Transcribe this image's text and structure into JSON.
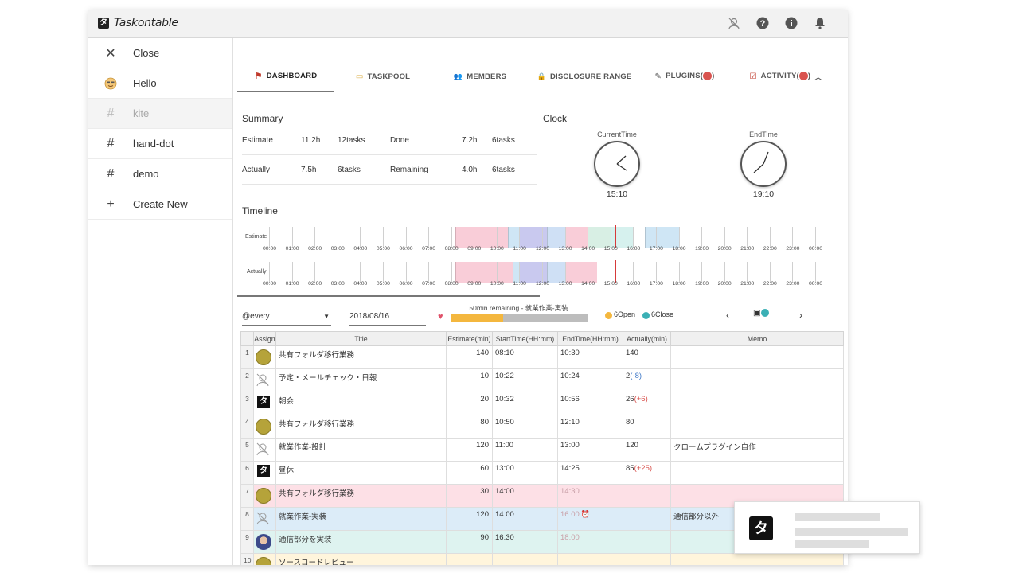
{
  "app": {
    "title": "Taskontable",
    "logo_glyph": "タ"
  },
  "header_icons": [
    "user-off-icon",
    "help-icon",
    "info-icon",
    "bell-icon"
  ],
  "sidebar": {
    "items": [
      {
        "icon": "close-icon",
        "glyph": "✕",
        "label": "Close"
      },
      {
        "icon": "emoji-icon",
        "glyph": "☺",
        "label": "Hello"
      },
      {
        "icon": "hash-icon",
        "glyph": "#",
        "label": "kite"
      },
      {
        "icon": "hash-icon",
        "glyph": "#",
        "label": "hand-dot"
      },
      {
        "icon": "hash-icon",
        "glyph": "#",
        "label": "demo"
      },
      {
        "icon": "plus-icon",
        "glyph": "+",
        "label": "Create New"
      }
    ]
  },
  "tabs": [
    {
      "label": "DASHBOARD",
      "glyph": "⚑",
      "active": true
    },
    {
      "label": "TASKPOOL",
      "glyph": "▭"
    },
    {
      "label": "MEMBERS",
      "glyph": "👥"
    },
    {
      "label": "DISCLOSURE RANGE",
      "glyph": "🔒"
    },
    {
      "label": "PLUGINS(",
      "suffix": ")",
      "glyph": "✎"
    },
    {
      "label": "ACTIVITY(",
      "suffix": ")",
      "glyph": "☑"
    }
  ],
  "summary": {
    "title": "Summary",
    "rows": [
      {
        "label": "Estimate",
        "hours": "11.2h",
        "tasks": "12tasks",
        "label2": "Done",
        "hours2": "7.2h",
        "tasks2": "6tasks"
      },
      {
        "label": "Actually",
        "hours": "7.5h",
        "tasks": "6tasks",
        "label2": "Remaining",
        "hours2": "4.0h",
        "tasks2": "6tasks"
      }
    ]
  },
  "clock": {
    "title": "Clock",
    "current_label": "CurrentTime",
    "current_time": "15:10",
    "end_label": "EndTime",
    "end_time": "19:10"
  },
  "timeline": {
    "title": "Timeline",
    "estimate_label": "Estimate",
    "actually_label": "Actually",
    "hours": [
      "00:00",
      "01:00",
      "02:00",
      "03:00",
      "04:00",
      "05:00",
      "06:00",
      "07:00",
      "08:00",
      "09:00",
      "10:00",
      "11:00",
      "12:00",
      "13:00",
      "14:00",
      "15:00",
      "16:00",
      "17:00",
      "18:00",
      "19:00",
      "20:00",
      "21:00",
      "22:00",
      "23:00",
      "00:00"
    ],
    "estimate_blocks": [
      {
        "start": 8.17,
        "end": 10.5,
        "color": "#f9cdd8"
      },
      {
        "start": 10.5,
        "end": 11.0,
        "color": "#cfe6f5"
      },
      {
        "start": 11.0,
        "end": 12.2,
        "color": "#c9c9ef"
      },
      {
        "start": 12.2,
        "end": 13.0,
        "color": "#cfe0f5"
      },
      {
        "start": 13.0,
        "end": 14.0,
        "color": "#f9cdd8"
      },
      {
        "start": 14.0,
        "end": 15.0,
        "color": "#d8efe4"
      },
      {
        "start": 15.0,
        "end": 16.0,
        "color": "#d6f1ee"
      },
      {
        "start": 16.5,
        "end": 18.0,
        "color": "#cfe6f5"
      }
    ],
    "actual_blocks": [
      {
        "start": 8.17,
        "end": 10.7,
        "color": "#f9cdd8"
      },
      {
        "start": 10.7,
        "end": 11.0,
        "color": "#cfe6f5"
      },
      {
        "start": 11.0,
        "end": 12.2,
        "color": "#c9c9ef"
      },
      {
        "start": 12.2,
        "end": 13.0,
        "color": "#cfe0f5"
      },
      {
        "start": 13.0,
        "end": 14.4,
        "color": "#f9cdd8"
      }
    ],
    "now_hour": 15.17
  },
  "controls": {
    "filter": "@every",
    "date": "2018/08/16",
    "progress_text": "50min remaining - 就業作業-実装",
    "progress": 0.38,
    "open_label": "6Open",
    "close_label": "6Close"
  },
  "grid": {
    "headers": [
      "Assign",
      "Title",
      "Estimate(min)",
      "StartTime(HH:mm)",
      "EndTime(HH:mm)",
      "Actually(min)",
      "Memo"
    ],
    "rows": [
      {
        "n": "1",
        "avatar": "olive",
        "title": "共有フォルダ移行業務",
        "est": "140",
        "start": "08:10",
        "end": "10:30",
        "act": "140",
        "diff": "",
        "memo": "",
        "style": ""
      },
      {
        "n": "2",
        "avatar": "line",
        "title": "予定・メールチェック・日報",
        "est": "10",
        "start": "10:22",
        "end": "10:24",
        "act": "2",
        "diff": "(-8)",
        "diffColor": "#3f78c7",
        "memo": "",
        "style": ""
      },
      {
        "n": "3",
        "avatar": "logo",
        "title": "朝会",
        "est": "20",
        "start": "10:32",
        "end": "10:56",
        "act": "26",
        "diff": "(+6)",
        "diffColor": "#d9534f",
        "memo": "",
        "style": ""
      },
      {
        "n": "4",
        "avatar": "olive",
        "title": "共有フォルダ移行業務",
        "est": "80",
        "start": "10:50",
        "end": "12:10",
        "act": "80",
        "diff": "",
        "memo": "",
        "style": ""
      },
      {
        "n": "5",
        "avatar": "line",
        "title": "就業作業-設計",
        "est": "120",
        "start": "11:00",
        "end": "13:00",
        "act": "120",
        "diff": "",
        "memo": "クロームプラグイン自作",
        "style": ""
      },
      {
        "n": "6",
        "avatar": "logo",
        "title": "昼休",
        "est": "60",
        "start": "13:00",
        "end": "14:25",
        "act": "85",
        "diff": "(+25)",
        "diffColor": "#d9534f",
        "memo": "",
        "style": ""
      },
      {
        "n": "7",
        "avatar": "olive",
        "title": "共有フォルダ移行業務",
        "est": "30",
        "start": "14:00",
        "end": "14:30",
        "endMuted": true,
        "act": "",
        "diff": "",
        "memo": "",
        "style": "pink"
      },
      {
        "n": "8",
        "avatar": "line",
        "title": "就業作業-実装",
        "est": "120",
        "start": "14:00",
        "end": "16:00",
        "endMuted": true,
        "alarm": true,
        "act": "",
        "diff": "",
        "memo": "通信部分以外",
        "style": "blue"
      },
      {
        "n": "9",
        "avatar": "photo",
        "title": "通信部分を実装",
        "est": "90",
        "start": "16:30",
        "end": "18:00",
        "endMuted": true,
        "act": "",
        "diff": "",
        "memo": "",
        "style": "teal"
      },
      {
        "n": "10",
        "avatar": "olive",
        "title": "ソースコードレビュー",
        "est": "",
        "start": "",
        "end": "",
        "act": "",
        "diff": "",
        "memo": "",
        "style": "yellow"
      }
    ]
  },
  "toast": {
    "logo_glyph": "タ"
  }
}
